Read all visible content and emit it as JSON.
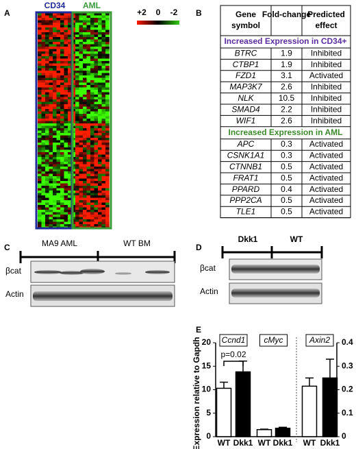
{
  "panels": {
    "a": {
      "label": "A",
      "groups": [
        "CD34",
        "AML"
      ],
      "scale": [
        "+2",
        "0",
        "-2"
      ]
    },
    "b": {
      "label": "B",
      "table": {
        "headers": [
          "Gene symbol",
          "Fold-change",
          "Predicted effect"
        ],
        "sections": [
          {
            "title": "Increased Expression in CD34+",
            "rows": [
              [
                "BTRC",
                1.9,
                "Inhibited"
              ],
              [
                "CTBP1",
                1.9,
                "Inhibited"
              ],
              [
                "FZD1",
                3.1,
                "Activated"
              ],
              [
                "MAP3K7",
                2.6,
                "Inhibited"
              ],
              [
                "NLK",
                10.5,
                "Inhibited"
              ],
              [
                "SMAD4",
                2.2,
                "Inhibited"
              ],
              [
                "WIF1",
                2.6,
                "Inhibited"
              ]
            ]
          },
          {
            "title": "Increased Expression in AML",
            "rows": [
              [
                "APC",
                0.3,
                "Activated"
              ],
              [
                "CSNK1A1",
                0.3,
                "Activated"
              ],
              [
                "CTNNB1",
                0.5,
                "Activated"
              ],
              [
                "FRAT1",
                0.5,
                "Activated"
              ],
              [
                "PPARD",
                0.4,
                "Activated"
              ],
              [
                "PPP2CA",
                0.5,
                "Activated"
              ],
              [
                "TLE1",
                0.5,
                "Activated"
              ]
            ]
          }
        ]
      }
    },
    "c": {
      "label": "C",
      "groups": [
        "MA9 AML",
        "WT BM"
      ],
      "rows": [
        "βcat",
        "Actin"
      ]
    },
    "d": {
      "label": "D",
      "groups": [
        "Dkk1",
        "WT"
      ],
      "rows": [
        "βcat",
        "Actin"
      ]
    },
    "e": {
      "label": "E",
      "chart_data": {
        "type": "bar",
        "y_label": "Expression relative to Gapdh",
        "ylim": [
          0,
          20
        ],
        "yticks": [
          0,
          5,
          10,
          15,
          20
        ],
        "y2lim": [
          0,
          0.4
        ],
        "y2ticks": [
          0,
          0.1,
          0.2,
          0.3,
          0.4
        ],
        "colors": [
          "#ffffff",
          "#000000"
        ],
        "groups": [
          {
            "name": "Ccnd1",
            "categories": [
              "WT",
              "Dkk1"
            ],
            "values": [
              10.3,
              13.8
            ],
            "errors": [
              1.3,
              2.3
            ]
          },
          {
            "name": "cMyc",
            "categories": [
              "WT",
              "Dkk1"
            ],
            "values": [
              1.5,
              1.8
            ],
            "errors": [
              0.1,
              0.2
            ]
          },
          {
            "name": "Axin2",
            "axis": "y2",
            "categories": [
              "WT",
              "Dkk1"
            ],
            "values": [
              0.215,
              0.25
            ],
            "errors": [
              0.035,
              0.08
            ]
          }
        ],
        "annotations": [
          "p=0.02"
        ]
      }
    }
  }
}
